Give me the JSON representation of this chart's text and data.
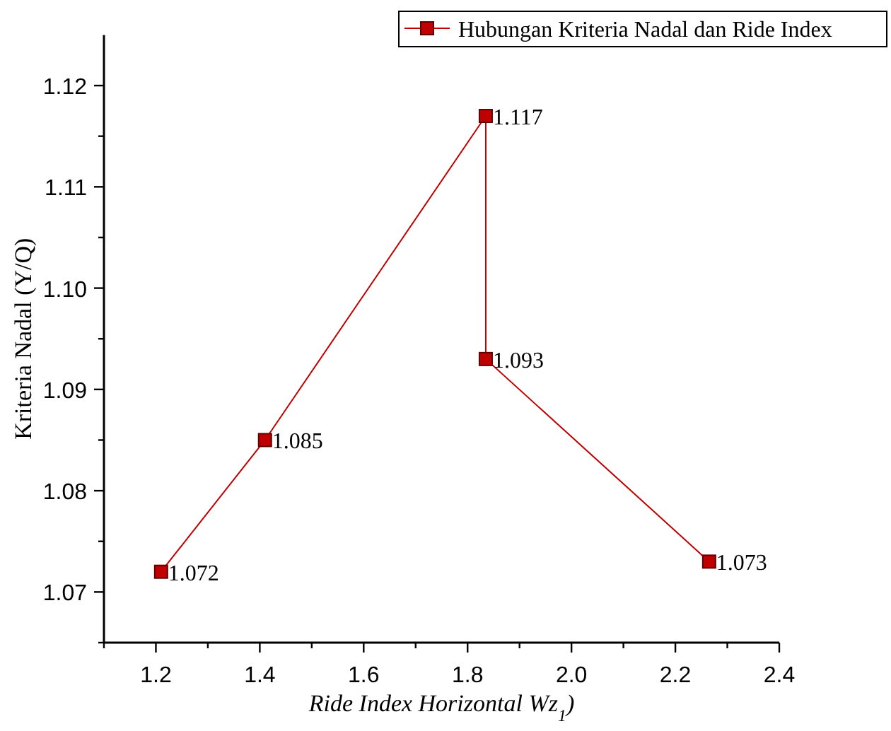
{
  "chart_data": {
    "type": "line",
    "xlabel": "Ride Index Horizontal Wz$_{1}$)",
    "ylabel": "Kriteria Nadal (Y/Q)",
    "x": [
      1.21,
      1.41,
      1.835,
      1.835,
      2.265
    ],
    "series": [
      {
        "name": "Hubungan Kriteria Nadal dan Ride Index",
        "color": "#c00000",
        "values": [
          1.072,
          1.085,
          1.117,
          1.093,
          1.073
        ]
      }
    ],
    "xlim": [
      1.1,
      2.4
    ],
    "ylim": [
      1.065,
      1.125
    ],
    "xticks": [
      {
        "value": 1.1,
        "label": null
      },
      1.2,
      {
        "value": 1.3,
        "label": null
      },
      1.4,
      {
        "value": 1.5,
        "label": null
      },
      1.6,
      {
        "value": 1.7,
        "label": null
      },
      1.8,
      {
        "value": 1.9,
        "label": null
      },
      "2.0",
      {
        "value": 2.1,
        "label": null
      },
      2.2,
      {
        "value": 2.3,
        "label": null
      },
      2.4
    ],
    "yticks": [
      {
        "value": 1.065,
        "label": null
      },
      1.07,
      {
        "value": 1.075,
        "label": null
      },
      1.08,
      {
        "value": 1.085,
        "label": null
      },
      1.09,
      {
        "value": 1.095,
        "label": null
      },
      {
        "value": 1.1,
        "label": "1.10"
      },
      {
        "value": 1.105,
        "label": null
      },
      1.11,
      {
        "value": 1.115,
        "label": null
      },
      1.12
    ],
    "data_labels": true,
    "legend": "top right",
    "marker": "square",
    "line_style": "solid",
    "grid": false
  }
}
